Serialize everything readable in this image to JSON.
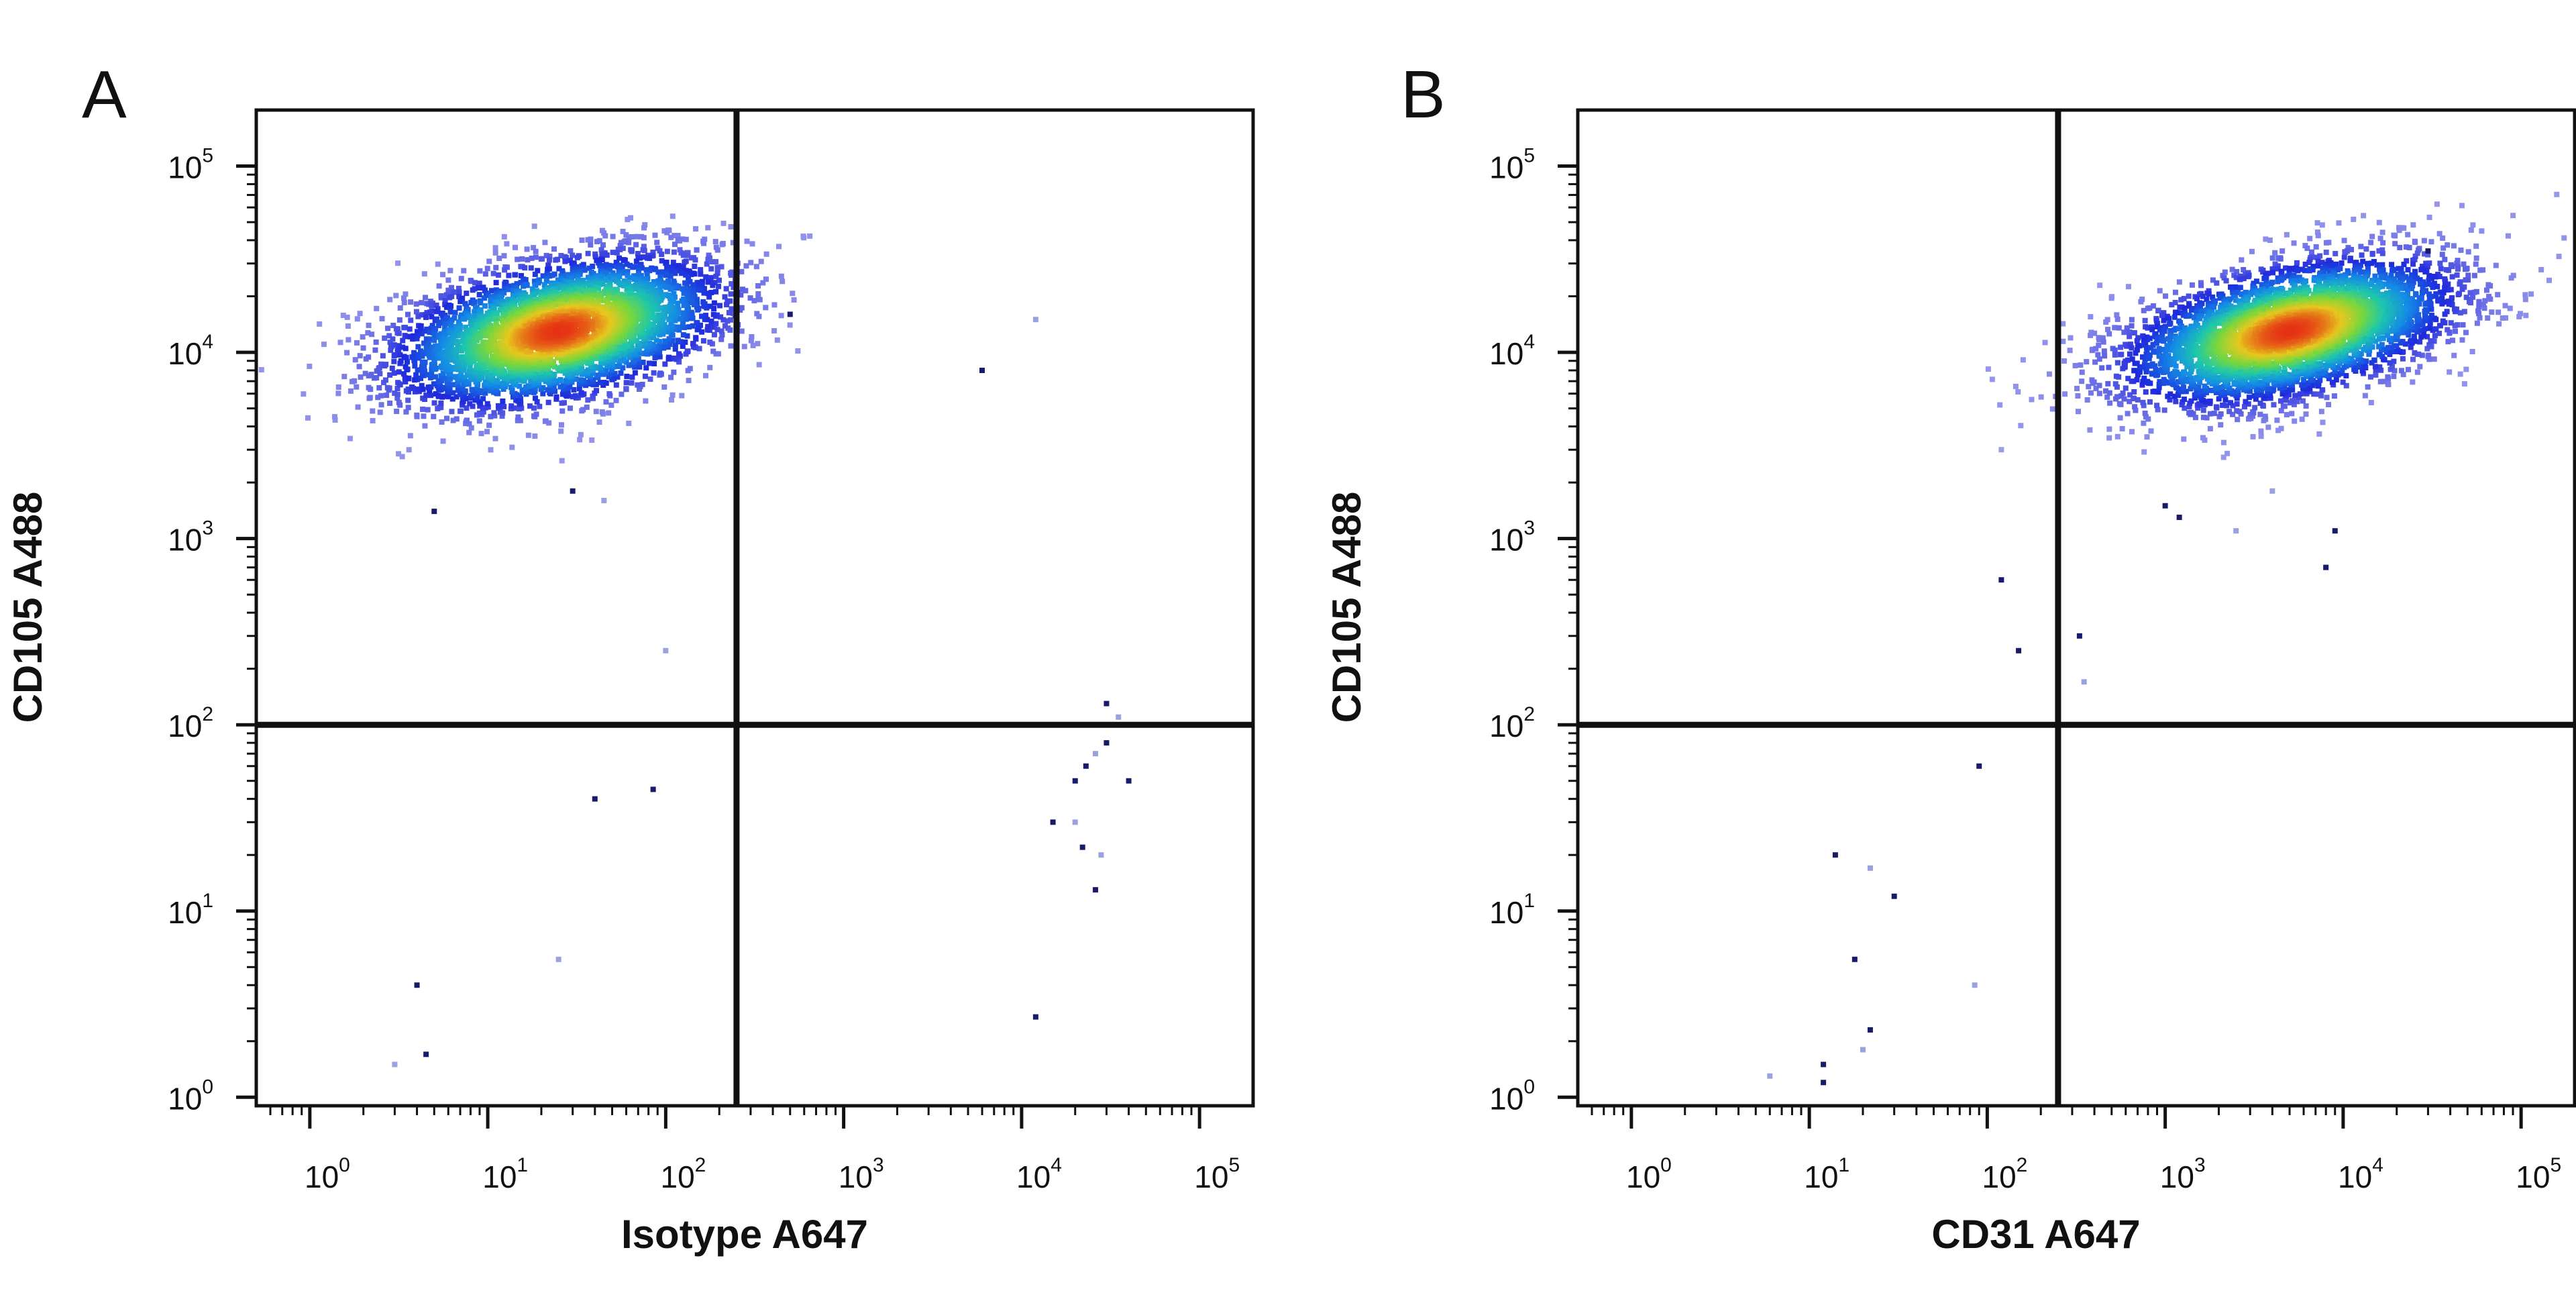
{
  "figure": {
    "panels": [
      {
        "letter": "A"
      },
      {
        "letter": "B"
      }
    ]
  },
  "chart_data": [
    {
      "type": "scatter",
      "subtype": "flow-cytometry-density-dot-plot",
      "panel": "A",
      "xlabel": "Isotype A647",
      "ylabel": "CD105 A488",
      "x_scale": "log",
      "y_scale": "log",
      "xlim": [
        0.5,
        200000
      ],
      "ylim": [
        0.9,
        200000
      ],
      "x_ticks": [
        {
          "base": "10",
          "exp": "0"
        },
        {
          "base": "10",
          "exp": "1"
        },
        {
          "base": "10",
          "exp": "2"
        },
        {
          "base": "10",
          "exp": "3"
        },
        {
          "base": "10",
          "exp": "4"
        },
        {
          "base": "10",
          "exp": "5"
        }
      ],
      "y_ticks": [
        {
          "base": "10",
          "exp": "0"
        },
        {
          "base": "10",
          "exp": "1"
        },
        {
          "base": "10",
          "exp": "2"
        },
        {
          "base": "10",
          "exp": "3"
        },
        {
          "base": "10",
          "exp": "4"
        },
        {
          "base": "10",
          "exp": "5"
        }
      ],
      "gate_x": 250,
      "gate_y": 100,
      "population": {
        "center_x": 25,
        "center_y": 13000,
        "spread_x_decades": 0.45,
        "spread_y_decades": 0.18,
        "tilt": 0.18,
        "count": 4500
      },
      "outliers": [
        {
          "x": 3,
          "y": 1.5
        },
        {
          "x": 4.5,
          "y": 1.7
        },
        {
          "x": 4,
          "y": 4
        },
        {
          "x": 25,
          "y": 5.5
        },
        {
          "x": 40,
          "y": 40
        },
        {
          "x": 85,
          "y": 45
        },
        {
          "x": 100,
          "y": 250
        },
        {
          "x": 5,
          "y": 1400
        },
        {
          "x": 30,
          "y": 1800
        },
        {
          "x": 45,
          "y": 1600
        },
        {
          "x": 500,
          "y": 16000
        },
        {
          "x": 6000,
          "y": 8000
        },
        {
          "x": 12000,
          "y": 15000
        },
        {
          "x": 12000,
          "y": 2.7
        },
        {
          "x": 15000,
          "y": 30
        },
        {
          "x": 20000,
          "y": 30
        },
        {
          "x": 22000,
          "y": 22
        },
        {
          "x": 26000,
          "y": 13
        },
        {
          "x": 28000,
          "y": 20
        },
        {
          "x": 20000,
          "y": 50
        },
        {
          "x": 23000,
          "y": 60
        },
        {
          "x": 26000,
          "y": 70
        },
        {
          "x": 30000,
          "y": 80
        },
        {
          "x": 32000,
          "y": 100
        },
        {
          "x": 35000,
          "y": 110
        },
        {
          "x": 30000,
          "y": 130
        },
        {
          "x": 40000,
          "y": 50
        }
      ]
    },
    {
      "type": "scatter",
      "subtype": "flow-cytometry-density-dot-plot",
      "panel": "B",
      "xlabel": "CD31 A647",
      "ylabel": "CD105 A488",
      "x_scale": "log",
      "y_scale": "log",
      "xlim": [
        0.5,
        200000
      ],
      "ylim": [
        0.9,
        200000
      ],
      "x_ticks": [
        {
          "base": "10",
          "exp": "0"
        },
        {
          "base": "10",
          "exp": "1"
        },
        {
          "base": "10",
          "exp": "2"
        },
        {
          "base": "10",
          "exp": "3"
        },
        {
          "base": "10",
          "exp": "4"
        },
        {
          "base": "10",
          "exp": "5"
        }
      ],
      "y_ticks": [
        {
          "base": "10",
          "exp": "0"
        },
        {
          "base": "10",
          "exp": "1"
        },
        {
          "base": "10",
          "exp": "2"
        },
        {
          "base": "10",
          "exp": "3"
        },
        {
          "base": "10",
          "exp": "4"
        },
        {
          "base": "10",
          "exp": "5"
        }
      ],
      "gate_x": 250,
      "gate_y": 100,
      "population": {
        "center_x": 5000,
        "center_y": 13000,
        "spread_x_decades": 0.45,
        "spread_y_decades": 0.17,
        "tilt": 0.2,
        "count": 4500
      },
      "outliers": [
        {
          "x": 6,
          "y": 1.3
        },
        {
          "x": 12,
          "y": 1.2
        },
        {
          "x": 12,
          "y": 1.5
        },
        {
          "x": 20,
          "y": 1.8
        },
        {
          "x": 22,
          "y": 2.3
        },
        {
          "x": 14,
          "y": 20
        },
        {
          "x": 22,
          "y": 17
        },
        {
          "x": 18,
          "y": 5.5
        },
        {
          "x": 30,
          "y": 12
        },
        {
          "x": 85,
          "y": 4
        },
        {
          "x": 90,
          "y": 60
        },
        {
          "x": 120,
          "y": 600
        },
        {
          "x": 120,
          "y": 3000
        },
        {
          "x": 150,
          "y": 250
        },
        {
          "x": 330,
          "y": 300
        },
        {
          "x": 350,
          "y": 170
        },
        {
          "x": 1000,
          "y": 1500
        },
        {
          "x": 1200,
          "y": 1300
        },
        {
          "x": 2500,
          "y": 1100
        },
        {
          "x": 8000,
          "y": 700
        },
        {
          "x": 9000,
          "y": 1100
        },
        {
          "x": 4000,
          "y": 1800
        },
        {
          "x": 30000,
          "y": 35000
        }
      ]
    }
  ]
}
